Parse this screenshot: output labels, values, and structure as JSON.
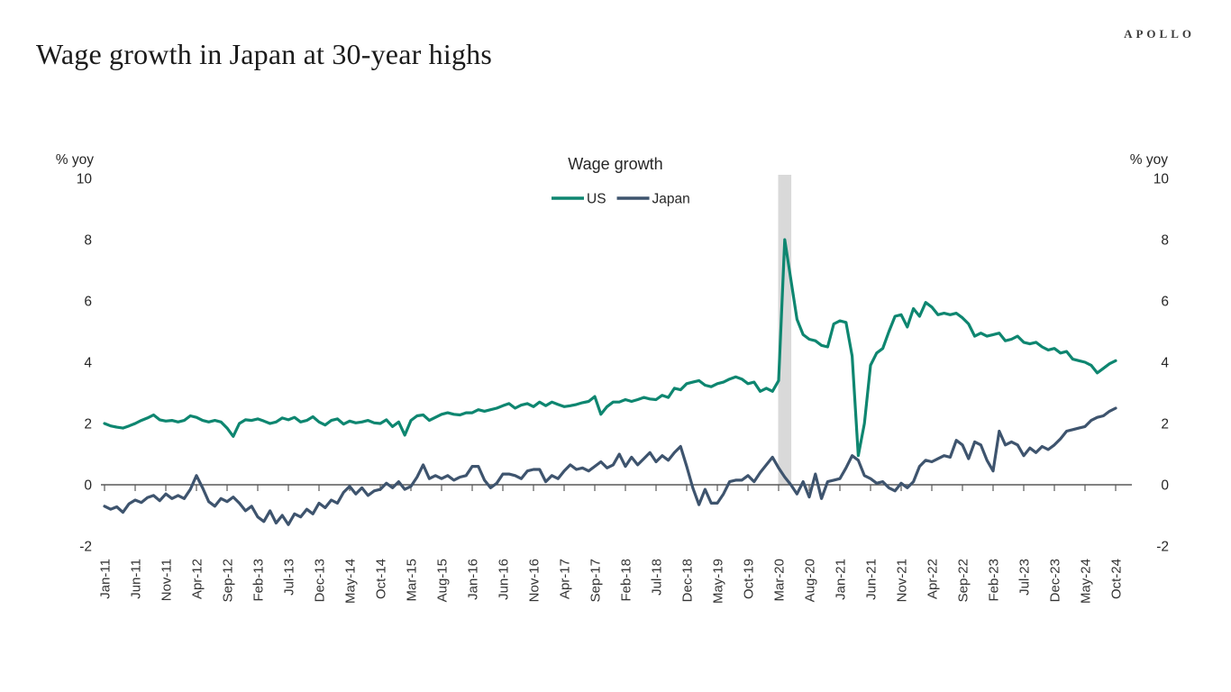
{
  "header": {
    "logo": "APOLLO",
    "title": "Wage growth in Japan at 30-year highs"
  },
  "colors": {
    "us_line": "#0E8670",
    "japan_line": "#3E546E",
    "recession_band": "#D9D9D9",
    "axis": "#595959",
    "text": "#262626"
  },
  "chart_data": {
    "type": "line",
    "title": "Wage growth",
    "left_axis_label": "% yoy",
    "right_axis_label": "% yoy",
    "ylim": [
      -2,
      10
    ],
    "yticks": [
      10,
      8,
      6,
      4,
      2,
      0,
      -2
    ],
    "grid": false,
    "legend_position": "top-center",
    "x_unit": "month",
    "x_start": "Jan-11",
    "x_end": "Oct-24",
    "x_tick_step_months": 5,
    "x_tick_labels": [
      "Jan-11",
      "Jun-11",
      "Nov-11",
      "Apr-12",
      "Sep-12",
      "Feb-13",
      "Jul-13",
      "Dec-13",
      "May-14",
      "Oct-14",
      "Mar-15",
      "Aug-15",
      "Jan-16",
      "Jun-16",
      "Nov-16",
      "Apr-17",
      "Sep-17",
      "Feb-18",
      "Jul-18",
      "Dec-18",
      "May-19",
      "Oct-19",
      "Mar-20",
      "Aug-20",
      "Jan-21",
      "Jun-21",
      "Nov-21",
      "Apr-22",
      "Sep-22",
      "Feb-23",
      "Jul-23",
      "Dec-23",
      "May-24",
      "Oct-24"
    ],
    "recession_band": {
      "from": "Mar-20",
      "to": "Apr-20",
      "from_index": 110,
      "to_index": 112,
      "color": "#D9D9D9"
    },
    "series": [
      {
        "name": "US",
        "color": "#0E8670",
        "values": [
          2.0,
          1.92,
          1.88,
          1.85,
          1.92,
          2.0,
          2.1,
          2.18,
          2.28,
          2.12,
          2.08,
          2.1,
          2.05,
          2.1,
          2.25,
          2.2,
          2.1,
          2.05,
          2.1,
          2.05,
          1.85,
          1.58,
          2.0,
          2.12,
          2.1,
          2.15,
          2.08,
          2.0,
          2.05,
          2.18,
          2.12,
          2.2,
          2.05,
          2.1,
          2.22,
          2.05,
          1.95,
          2.1,
          2.15,
          1.98,
          2.08,
          2.02,
          2.05,
          2.1,
          2.02,
          2.0,
          2.12,
          1.9,
          2.05,
          1.62,
          2.1,
          2.25,
          2.28,
          2.1,
          2.2,
          2.3,
          2.35,
          2.3,
          2.28,
          2.35,
          2.35,
          2.45,
          2.4,
          2.45,
          2.5,
          2.58,
          2.65,
          2.5,
          2.6,
          2.65,
          2.55,
          2.7,
          2.58,
          2.7,
          2.62,
          2.55,
          2.58,
          2.62,
          2.68,
          2.72,
          2.88,
          2.3,
          2.55,
          2.7,
          2.7,
          2.78,
          2.72,
          2.78,
          2.85,
          2.8,
          2.78,
          2.92,
          2.85,
          3.15,
          3.1,
          3.3,
          3.35,
          3.4,
          3.25,
          3.2,
          3.3,
          3.35,
          3.45,
          3.52,
          3.45,
          3.3,
          3.35,
          3.05,
          3.15,
          3.05,
          3.4,
          8.0,
          6.7,
          5.4,
          4.9,
          4.75,
          4.7,
          4.55,
          4.5,
          5.25,
          5.35,
          5.3,
          4.2,
          0.95,
          2.0,
          3.9,
          4.3,
          4.45,
          5.0,
          5.5,
          5.55,
          5.15,
          5.75,
          5.5,
          5.95,
          5.8,
          5.55,
          5.6,
          5.55,
          5.6,
          5.45,
          5.25,
          4.85,
          4.95,
          4.85,
          4.9,
          4.95,
          4.7,
          4.75,
          4.85,
          4.65,
          4.6,
          4.65,
          4.5,
          4.4,
          4.45,
          4.3,
          4.35,
          4.1,
          4.05,
          4.0,
          3.9,
          3.65,
          3.8,
          3.95,
          4.05
        ]
      },
      {
        "name": "Japan",
        "color": "#3E546E",
        "values": [
          -0.7,
          -0.8,
          -0.72,
          -0.9,
          -0.62,
          -0.5,
          -0.58,
          -0.42,
          -0.35,
          -0.52,
          -0.3,
          -0.45,
          -0.35,
          -0.45,
          -0.15,
          0.3,
          -0.1,
          -0.55,
          -0.7,
          -0.45,
          -0.55,
          -0.4,
          -0.6,
          -0.85,
          -0.7,
          -1.05,
          -1.2,
          -0.85,
          -1.25,
          -1.0,
          -1.3,
          -0.95,
          -1.05,
          -0.8,
          -0.95,
          -0.6,
          -0.75,
          -0.5,
          -0.6,
          -0.25,
          -0.05,
          -0.3,
          -0.1,
          -0.35,
          -0.2,
          -0.15,
          0.05,
          -0.1,
          0.1,
          -0.15,
          -0.05,
          0.25,
          0.65,
          0.2,
          0.3,
          0.2,
          0.3,
          0.15,
          0.25,
          0.3,
          0.6,
          0.6,
          0.15,
          -0.1,
          0.05,
          0.35,
          0.35,
          0.3,
          0.2,
          0.45,
          0.5,
          0.5,
          0.1,
          0.3,
          0.2,
          0.45,
          0.65,
          0.5,
          0.55,
          0.45,
          0.6,
          0.75,
          0.55,
          0.65,
          1.0,
          0.6,
          0.9,
          0.65,
          0.85,
          1.05,
          0.75,
          0.95,
          0.8,
          1.05,
          1.25,
          0.6,
          -0.1,
          -0.65,
          -0.15,
          -0.6,
          -0.6,
          -0.3,
          0.1,
          0.15,
          0.15,
          0.3,
          0.1,
          0.4,
          0.65,
          0.9,
          0.55,
          0.25,
          0.0,
          -0.3,
          0.1,
          -0.4,
          0.35,
          -0.45,
          0.1,
          0.15,
          0.2,
          0.55,
          0.95,
          0.8,
          0.3,
          0.2,
          0.05,
          0.1,
          -0.1,
          -0.2,
          0.05,
          -0.1,
          0.1,
          0.6,
          0.8,
          0.75,
          0.85,
          0.95,
          0.9,
          1.45,
          1.3,
          0.85,
          1.4,
          1.3,
          0.8,
          0.45,
          1.75,
          1.3,
          1.4,
          1.3,
          0.95,
          1.2,
          1.05,
          1.25,
          1.15,
          1.3,
          1.5,
          1.75,
          1.8,
          1.85,
          1.9,
          2.1,
          2.2,
          2.25,
          2.4,
          2.5
        ]
      }
    ]
  }
}
